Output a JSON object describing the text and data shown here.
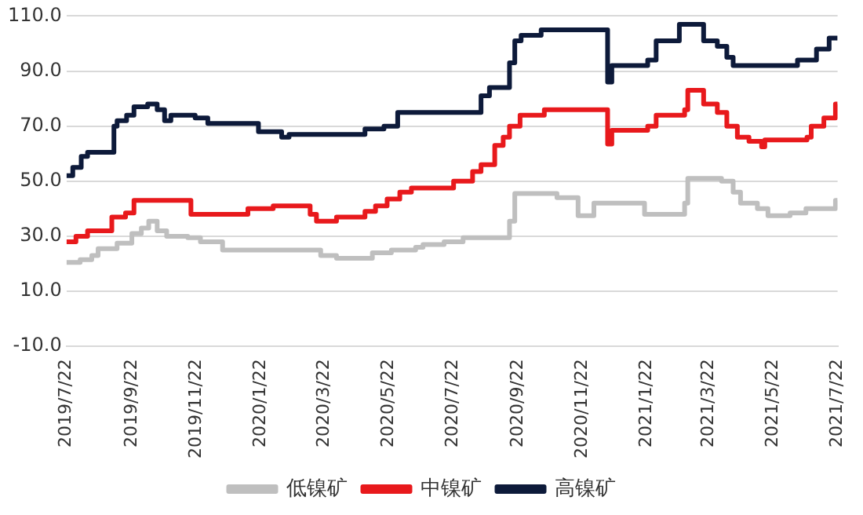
{
  "chart_data": {
    "type": "step",
    "xlim": [
      "2019-07-22",
      "2021-07-22"
    ],
    "xticks": [
      {
        "value": "2019-07-22",
        "label": "2019/7/22"
      },
      {
        "value": "2019-09-22",
        "label": "2019/9/22"
      },
      {
        "value": "2019-11-22",
        "label": "2019/11/22"
      },
      {
        "value": "2020-01-22",
        "label": "2020/1/22"
      },
      {
        "value": "2020-03-22",
        "label": "2020/3/22"
      },
      {
        "value": "2020-05-22",
        "label": "2020/5/22"
      },
      {
        "value": "2020-07-22",
        "label": "2020/7/22"
      },
      {
        "value": "2020-09-22",
        "label": "2020/9/22"
      },
      {
        "value": "2020-11-22",
        "label": "2020/11/22"
      },
      {
        "value": "2021-01-22",
        "label": "2021/1/22"
      },
      {
        "value": "2021-03-22",
        "label": "2021/3/22"
      },
      {
        "value": "2021-05-22",
        "label": "2021/5/22"
      },
      {
        "value": "2021-07-22",
        "label": "2021/7/22"
      }
    ],
    "ylim": [
      -10,
      110
    ],
    "yticks": [
      {
        "value": -10,
        "label": "-10.0"
      },
      {
        "value": 10,
        "label": "10.0"
      },
      {
        "value": 30,
        "label": "30.0"
      },
      {
        "value": 50,
        "label": "50.0"
      },
      {
        "value": 70,
        "label": "70.0"
      },
      {
        "value": 90,
        "label": "90.0"
      },
      {
        "value": 110,
        "label": "110.0"
      }
    ],
    "grid": "y",
    "legend": "bottom",
    "marker": "none",
    "line_style": "solid",
    "series": [
      {
        "name": "低镍矿",
        "color": "#bfbfbf",
        "x": [
          "2019-07-22",
          "2019-08-04",
          "2019-08-15",
          "2019-08-21",
          "2019-09-08",
          "2019-09-22",
          "2019-10-01",
          "2019-10-08",
          "2019-10-16",
          "2019-10-25",
          "2019-11-14",
          "2019-11-26",
          "2019-12-17",
          "2020-03-19",
          "2020-04-03",
          "2020-05-07",
          "2020-05-25",
          "2020-06-17",
          "2020-06-24",
          "2020-07-14",
          "2020-08-01",
          "2020-09-14",
          "2020-09-19",
          "2020-10-29",
          "2020-11-18",
          "2020-12-03",
          "2021-01-20",
          "2021-02-27",
          "2021-03-02",
          "2021-04-03",
          "2021-04-14",
          "2021-04-21",
          "2021-05-07",
          "2021-05-17",
          "2021-06-07",
          "2021-06-22",
          "2021-07-20",
          "2021-07-22"
        ],
        "values": [
          20.5,
          21.5,
          23,
          25.5,
          27.5,
          31,
          33,
          35.5,
          32,
          30,
          29.5,
          28,
          25,
          23,
          22,
          24,
          25,
          26,
          27,
          28,
          29.5,
          35.5,
          45.5,
          44,
          37.5,
          42,
          38,
          42,
          51,
          50,
          46,
          42,
          40,
          37.5,
          38.5,
          40,
          43,
          43
        ]
      },
      {
        "name": "中镍矿",
        "color": "#e8191c",
        "x": [
          "2019-07-22",
          "2019-07-31",
          "2019-08-11",
          "2019-09-03",
          "2019-09-16",
          "2019-09-24",
          "2019-11-17",
          "2020-01-10",
          "2020-02-03",
          "2020-03-09",
          "2020-03-15",
          "2020-04-03",
          "2020-04-30",
          "2020-05-10",
          "2020-05-21",
          "2020-06-02",
          "2020-06-13",
          "2020-07-23",
          "2020-08-10",
          "2020-08-18",
          "2020-08-31",
          "2020-09-08",
          "2020-09-14",
          "2020-09-24",
          "2020-10-17",
          "2020-12-16",
          "2020-12-20",
          "2021-01-23",
          "2021-01-31",
          "2021-02-27",
          "2021-03-02",
          "2021-03-17",
          "2021-03-30",
          "2021-04-08",
          "2021-04-18",
          "2021-04-29",
          "2021-05-11",
          "2021-05-14",
          "2021-06-23",
          "2021-06-27",
          "2021-07-09",
          "2021-07-20",
          "2021-07-22"
        ],
        "values": [
          28,
          30,
          32,
          37,
          38.5,
          43,
          38,
          40,
          41,
          38,
          35.5,
          37,
          39,
          41,
          43.5,
          46,
          47.5,
          50,
          53.5,
          56,
          63,
          66,
          70,
          74,
          76,
          63.5,
          68.5,
          70,
          74,
          76,
          83,
          78,
          75,
          70,
          66,
          64.5,
          62.5,
          65,
          66,
          70,
          73,
          78,
          78
        ]
      },
      {
        "name": "高镍矿",
        "color": "#0d1a3a",
        "x": [
          "2019-07-22",
          "2019-07-28",
          "2019-08-05",
          "2019-08-11",
          "2019-09-05",
          "2019-09-08",
          "2019-09-17",
          "2019-09-24",
          "2019-10-07",
          "2019-10-16",
          "2019-10-23",
          "2019-10-29",
          "2019-11-21",
          "2019-12-03",
          "2020-01-20",
          "2020-02-11",
          "2020-02-18",
          "2020-04-30",
          "2020-05-18",
          "2020-05-31",
          "2020-08-18",
          "2020-08-26",
          "2020-09-14",
          "2020-09-19",
          "2020-09-25",
          "2020-10-14",
          "2020-12-16",
          "2020-12-20",
          "2021-01-23",
          "2021-01-31",
          "2021-02-22",
          "2021-03-17",
          "2021-03-30",
          "2021-04-08",
          "2021-04-14",
          "2021-06-14",
          "2021-07-02",
          "2021-07-14",
          "2021-07-22"
        ],
        "values": [
          52,
          55,
          59,
          60.5,
          70,
          72,
          74,
          77,
          78,
          76,
          72,
          74,
          73,
          71,
          68,
          66,
          67,
          69,
          70,
          75,
          81,
          84,
          93,
          101,
          103,
          105,
          86,
          92,
          94,
          101,
          107,
          101,
          99,
          95,
          92,
          94,
          98,
          102,
          102
        ]
      }
    ]
  }
}
